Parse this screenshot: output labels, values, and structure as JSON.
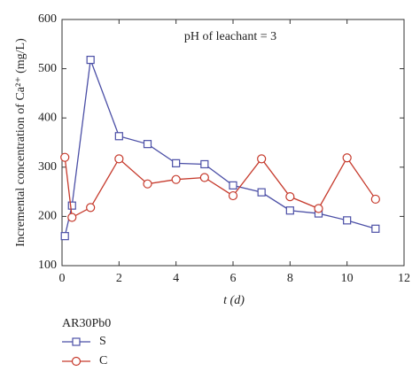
{
  "chart_data": {
    "type": "line",
    "annotation": "pH of leachant = 3",
    "x_label": "t (d)",
    "y_label": "Incremental concentration of Ca²⁺ (mg/L)",
    "legend_title": "AR30Pb0",
    "xlim": [
      0,
      12
    ],
    "xticks": [
      0,
      2,
      4,
      6,
      8,
      10,
      12
    ],
    "ylim": [
      100,
      600
    ],
    "yticks": [
      100,
      200,
      300,
      400,
      500,
      600
    ],
    "series": [
      {
        "name": "S",
        "color": "#4b4fa6",
        "marker": "square",
        "x": [
          0.1,
          0.35,
          1,
          2,
          3,
          4,
          5,
          6,
          7,
          8,
          9,
          10,
          11
        ],
        "values": [
          160,
          222,
          518,
          363,
          347,
          308,
          306,
          263,
          249,
          212,
          206,
          192,
          175
        ]
      },
      {
        "name": "C",
        "color": "#c63a2c",
        "marker": "circle",
        "x": [
          0.1,
          0.35,
          1,
          2,
          3,
          4,
          5,
          6,
          7,
          8,
          9,
          10,
          11
        ],
        "values": [
          320,
          198,
          218,
          317,
          266,
          275,
          279,
          242,
          317,
          240,
          216,
          319,
          235
        ]
      }
    ]
  }
}
